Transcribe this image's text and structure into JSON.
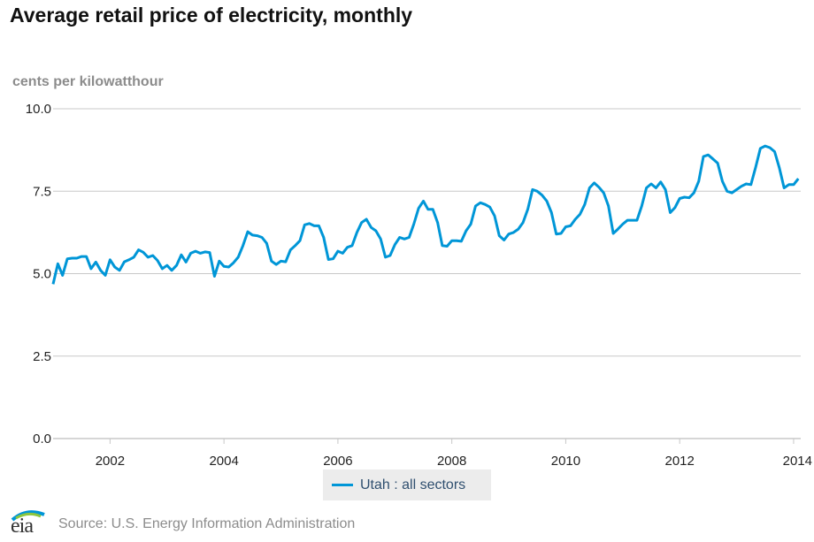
{
  "title": "Average retail price of electricity, monthly",
  "unit_label": "cents per kilowatthour",
  "source": "Source: U.S. Energy Information Administration",
  "logo_text": "eia",
  "colors": {
    "series": "#0096d7",
    "grid": "#c8c8c8",
    "axis_text": "#222222"
  },
  "chart_data": {
    "type": "line",
    "title": "Average retail price of electricity, monthly",
    "ylabel": "cents per kilowatthour",
    "ylim": [
      0,
      10
    ],
    "yticks": [
      "0.0",
      "2.5",
      "5.0",
      "7.5",
      "10.0"
    ],
    "ytick_values": [
      0,
      2.5,
      5,
      7.5,
      10
    ],
    "xlim": [
      2001.0,
      2014.125
    ],
    "xticks": [
      "2002",
      "2004",
      "2006",
      "2008",
      "2010",
      "2012",
      "2014"
    ],
    "xtick_values": [
      2002,
      2004,
      2006,
      2008,
      2010,
      2012,
      2014
    ],
    "grid": true,
    "legend_position": "bottom",
    "series": [
      {
        "name": "Utah : all sectors",
        "color": "#0096d7",
        "points": [
          [
            "2001-01",
            4.68
          ],
          [
            "2001-02",
            5.3
          ],
          [
            "2001-03",
            4.95
          ],
          [
            "2001-04",
            5.45
          ],
          [
            "2001-05",
            5.47
          ],
          [
            "2001-06",
            5.47
          ],
          [
            "2001-07",
            5.52
          ],
          [
            "2001-08",
            5.52
          ],
          [
            "2001-09",
            5.15
          ],
          [
            "2001-10",
            5.35
          ],
          [
            "2001-11",
            5.1
          ],
          [
            "2001-12",
            4.95
          ],
          [
            "2002-01",
            5.42
          ],
          [
            "2002-02",
            5.2
          ],
          [
            "2002-03",
            5.1
          ],
          [
            "2002-04",
            5.36
          ],
          [
            "2002-05",
            5.42
          ],
          [
            "2002-06",
            5.5
          ],
          [
            "2002-07",
            5.72
          ],
          [
            "2002-08",
            5.65
          ],
          [
            "2002-09",
            5.5
          ],
          [
            "2002-10",
            5.55
          ],
          [
            "2002-11",
            5.4
          ],
          [
            "2002-12",
            5.15
          ],
          [
            "2003-01",
            5.25
          ],
          [
            "2003-02",
            5.1
          ],
          [
            "2003-03",
            5.25
          ],
          [
            "2003-04",
            5.57
          ],
          [
            "2003-05",
            5.35
          ],
          [
            "2003-06",
            5.62
          ],
          [
            "2003-07",
            5.68
          ],
          [
            "2003-08",
            5.62
          ],
          [
            "2003-09",
            5.66
          ],
          [
            "2003-10",
            5.64
          ],
          [
            "2003-11",
            4.92
          ],
          [
            "2003-12",
            5.38
          ],
          [
            "2004-01",
            5.22
          ],
          [
            "2004-02",
            5.2
          ],
          [
            "2004-03",
            5.33
          ],
          [
            "2004-04",
            5.5
          ],
          [
            "2004-05",
            5.85
          ],
          [
            "2004-06",
            6.27
          ],
          [
            "2004-07",
            6.17
          ],
          [
            "2004-08",
            6.15
          ],
          [
            "2004-09",
            6.1
          ],
          [
            "2004-10",
            5.92
          ],
          [
            "2004-11",
            5.38
          ],
          [
            "2004-12",
            5.28
          ],
          [
            "2005-01",
            5.38
          ],
          [
            "2005-02",
            5.36
          ],
          [
            "2005-03",
            5.72
          ],
          [
            "2005-04",
            5.85
          ],
          [
            "2005-05",
            6.0
          ],
          [
            "2005-06",
            6.48
          ],
          [
            "2005-07",
            6.52
          ],
          [
            "2005-08",
            6.45
          ],
          [
            "2005-09",
            6.45
          ],
          [
            "2005-10",
            6.1
          ],
          [
            "2005-11",
            5.43
          ],
          [
            "2005-12",
            5.45
          ],
          [
            "2006-01",
            5.68
          ],
          [
            "2006-02",
            5.62
          ],
          [
            "2006-03",
            5.8
          ],
          [
            "2006-04",
            5.85
          ],
          [
            "2006-05",
            6.25
          ],
          [
            "2006-06",
            6.55
          ],
          [
            "2006-07",
            6.65
          ],
          [
            "2006-08",
            6.4
          ],
          [
            "2006-09",
            6.3
          ],
          [
            "2006-10",
            6.05
          ],
          [
            "2006-11",
            5.5
          ],
          [
            "2006-12",
            5.55
          ],
          [
            "2007-01",
            5.88
          ],
          [
            "2007-02",
            6.1
          ],
          [
            "2007-03",
            6.05
          ],
          [
            "2007-04",
            6.1
          ],
          [
            "2007-05",
            6.5
          ],
          [
            "2007-06",
            6.98
          ],
          [
            "2007-07",
            7.2
          ],
          [
            "2007-08",
            6.95
          ],
          [
            "2007-09",
            6.95
          ],
          [
            "2007-10",
            6.55
          ],
          [
            "2007-11",
            5.85
          ],
          [
            "2007-12",
            5.83
          ],
          [
            "2008-01",
            6.0
          ],
          [
            "2008-02",
            6.0
          ],
          [
            "2008-03",
            5.98
          ],
          [
            "2008-04",
            6.3
          ],
          [
            "2008-05",
            6.5
          ],
          [
            "2008-06",
            7.05
          ],
          [
            "2008-07",
            7.15
          ],
          [
            "2008-08",
            7.1
          ],
          [
            "2008-09",
            7.02
          ],
          [
            "2008-10",
            6.75
          ],
          [
            "2008-11",
            6.15
          ],
          [
            "2008-12",
            6.02
          ],
          [
            "2009-01",
            6.2
          ],
          [
            "2009-02",
            6.25
          ],
          [
            "2009-03",
            6.35
          ],
          [
            "2009-04",
            6.55
          ],
          [
            "2009-05",
            6.95
          ],
          [
            "2009-06",
            7.55
          ],
          [
            "2009-07",
            7.5
          ],
          [
            "2009-08",
            7.38
          ],
          [
            "2009-09",
            7.2
          ],
          [
            "2009-10",
            6.85
          ],
          [
            "2009-11",
            6.2
          ],
          [
            "2009-12",
            6.22
          ],
          [
            "2010-01",
            6.42
          ],
          [
            "2010-02",
            6.45
          ],
          [
            "2010-03",
            6.65
          ],
          [
            "2010-04",
            6.8
          ],
          [
            "2010-05",
            7.1
          ],
          [
            "2010-06",
            7.6
          ],
          [
            "2010-07",
            7.75
          ],
          [
            "2010-08",
            7.62
          ],
          [
            "2010-09",
            7.45
          ],
          [
            "2010-10",
            7.05
          ],
          [
            "2010-11",
            6.22
          ],
          [
            "2010-12",
            6.35
          ],
          [
            "2011-01",
            6.5
          ],
          [
            "2011-02",
            6.62
          ],
          [
            "2011-03",
            6.62
          ],
          [
            "2011-04",
            6.62
          ],
          [
            "2011-05",
            7.05
          ],
          [
            "2011-06",
            7.6
          ],
          [
            "2011-07",
            7.72
          ],
          [
            "2011-08",
            7.6
          ],
          [
            "2011-09",
            7.78
          ],
          [
            "2011-10",
            7.55
          ],
          [
            "2011-11",
            6.85
          ],
          [
            "2011-12",
            7.0
          ],
          [
            "2012-01",
            7.28
          ],
          [
            "2012-02",
            7.32
          ],
          [
            "2012-03",
            7.3
          ],
          [
            "2012-04",
            7.45
          ],
          [
            "2012-05",
            7.8
          ],
          [
            "2012-06",
            8.55
          ],
          [
            "2012-07",
            8.6
          ],
          [
            "2012-08",
            8.48
          ],
          [
            "2012-09",
            8.35
          ],
          [
            "2012-10",
            7.8
          ],
          [
            "2012-11",
            7.5
          ],
          [
            "2012-12",
            7.45
          ],
          [
            "2013-01",
            7.55
          ],
          [
            "2013-02",
            7.65
          ],
          [
            "2013-03",
            7.72
          ],
          [
            "2013-04",
            7.7
          ],
          [
            "2013-05",
            8.22
          ],
          [
            "2013-06",
            8.8
          ],
          [
            "2013-07",
            8.87
          ],
          [
            "2013-08",
            8.82
          ],
          [
            "2013-09",
            8.7
          ],
          [
            "2013-10",
            8.2
          ],
          [
            "2013-11",
            7.6
          ],
          [
            "2013-12",
            7.7
          ],
          [
            "2014-01",
            7.7
          ],
          [
            "2014-02",
            7.88
          ]
        ]
      }
    ]
  }
}
